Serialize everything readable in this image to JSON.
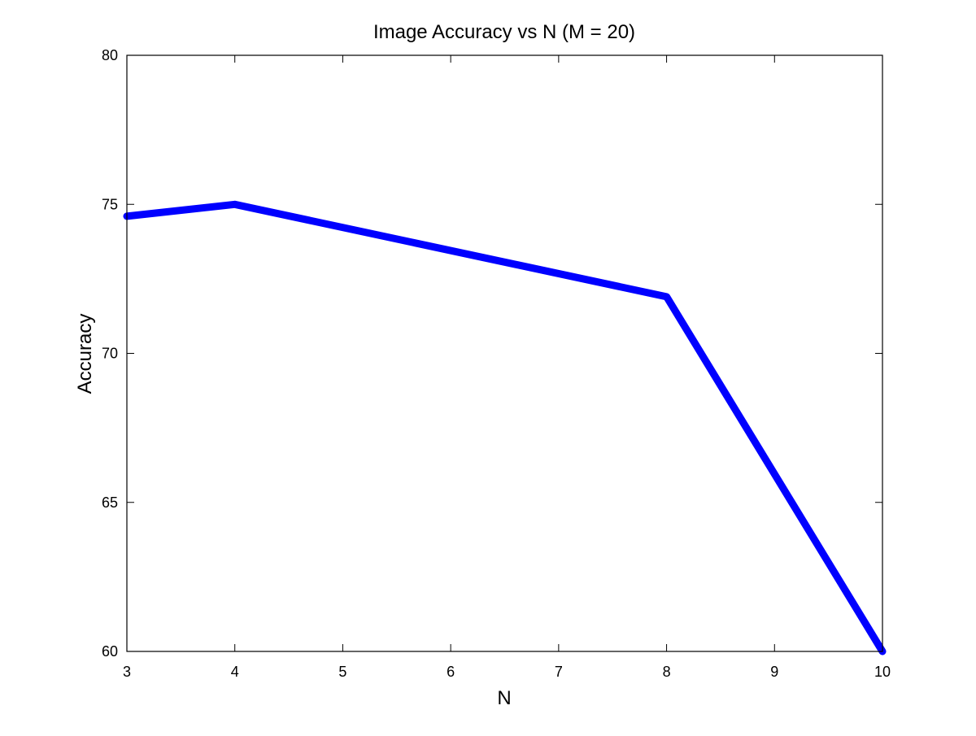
{
  "chart_data": {
    "type": "line",
    "title": "Image Accuracy vs N (M = 20)",
    "xlabel": "N",
    "ylabel": "Accuracy",
    "x": [
      3,
      4,
      8,
      10
    ],
    "series": [
      {
        "values": [
          74.6,
          75.0,
          71.9,
          60.0
        ],
        "color": "#0000ff"
      }
    ],
    "xlim": [
      3,
      10
    ],
    "ylim": [
      60,
      80
    ],
    "xticks": [
      "3",
      "4",
      "5",
      "6",
      "7",
      "8",
      "9",
      "10"
    ],
    "yticks": [
      "60",
      "65",
      "70",
      "75",
      "80"
    ],
    "grid": false,
    "legend": "none"
  }
}
